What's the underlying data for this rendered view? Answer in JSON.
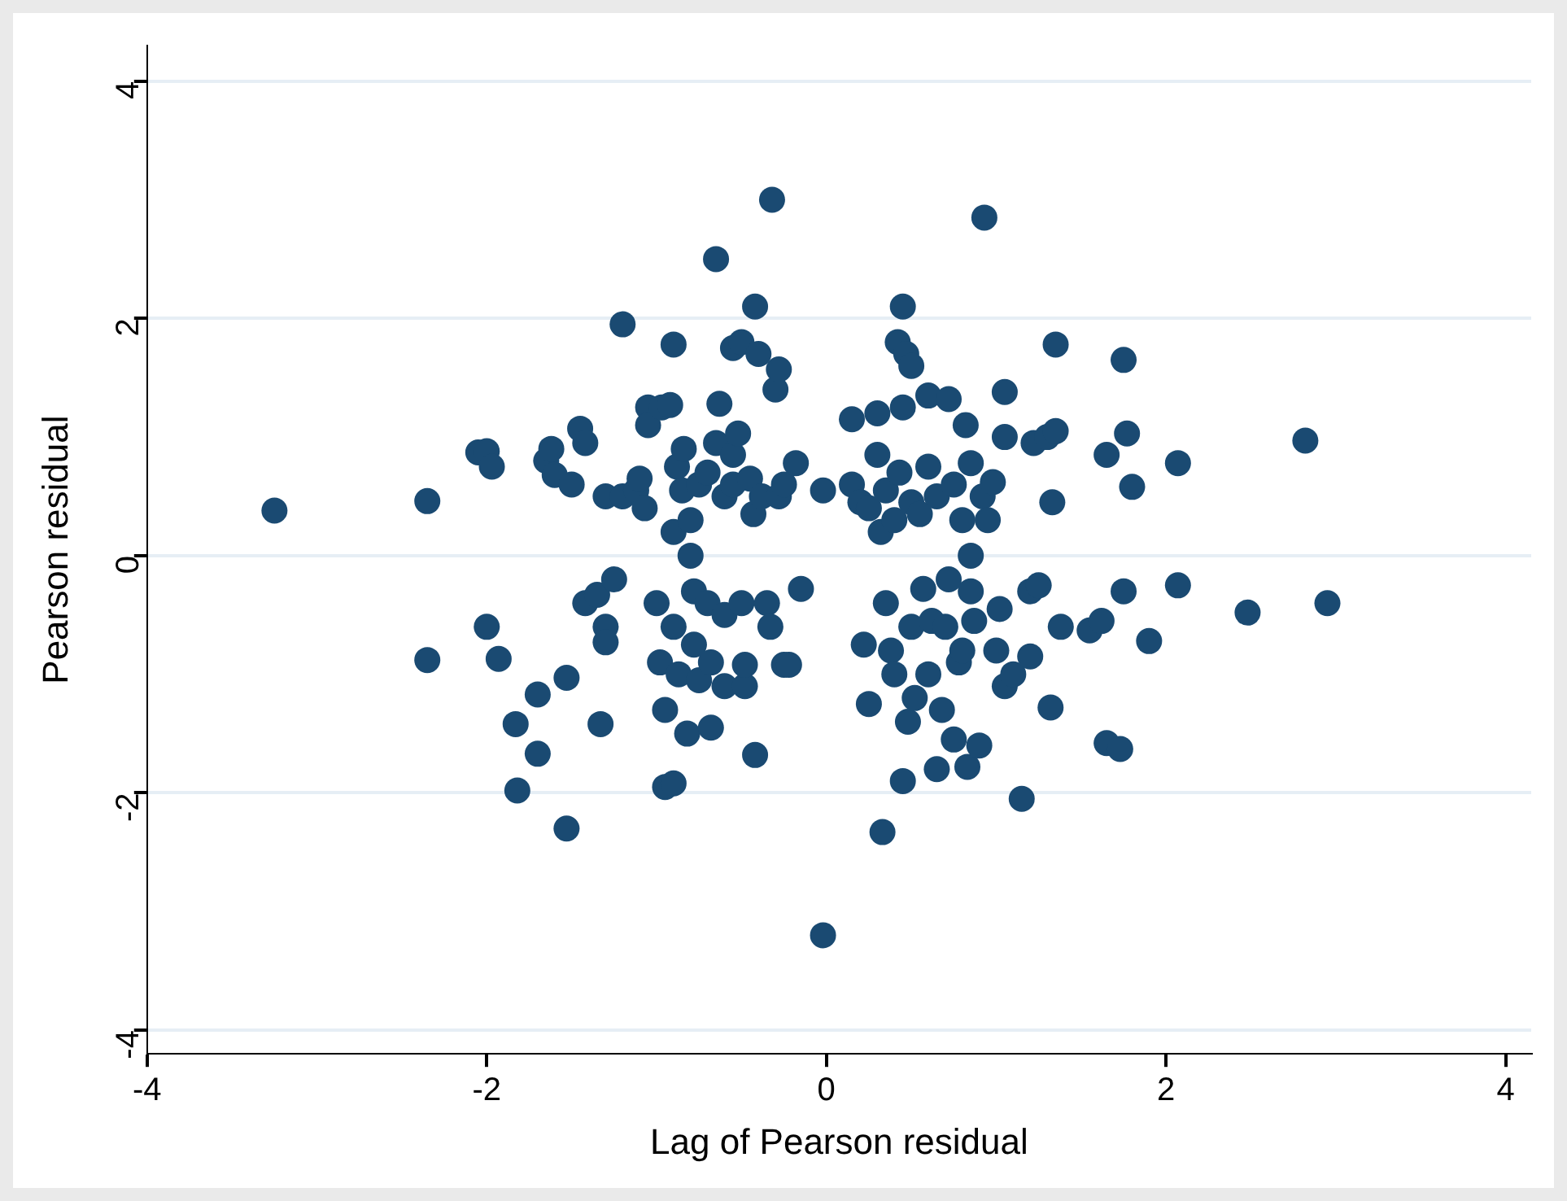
{
  "chart_data": {
    "type": "scatter",
    "xlabel": "Lag of Pearson residual",
    "ylabel": "Pearson residual",
    "xlim": [
      -4,
      4.15
    ],
    "ylim": [
      -4.2,
      4.3
    ],
    "xticks": [
      -4,
      -2,
      0,
      2,
      4
    ],
    "yticks": [
      -4,
      -2,
      0,
      2,
      4
    ],
    "grid": "y",
    "marker": "circle",
    "series": [
      {
        "color": "#1a4a72",
        "x": [
          -3.25,
          -2.35,
          -2.35,
          -2.05,
          -2.0,
          -1.97,
          -2.0,
          -1.93,
          -1.83,
          -1.82,
          -1.7,
          -1.7,
          -1.65,
          -1.62,
          -1.6,
          -1.53,
          -1.53,
          -1.5,
          -1.45,
          -1.42,
          -1.42,
          -1.35,
          -1.33,
          -1.3,
          -1.3,
          -1.3,
          -1.25,
          -1.2,
          -1.2,
          -1.12,
          -1.1,
          -1.07,
          -1.05,
          -1.05,
          -1.0,
          -0.98,
          -0.97,
          -0.95,
          -0.95,
          -0.92,
          -0.9,
          -0.9,
          -0.9,
          -0.9,
          -0.88,
          -0.87,
          -0.85,
          -0.84,
          -0.82,
          -0.8,
          -0.8,
          -0.78,
          -0.78,
          -0.75,
          -0.75,
          -0.7,
          -0.7,
          -0.68,
          -0.68,
          -0.65,
          -0.65,
          -0.63,
          -0.6,
          -0.6,
          -0.6,
          -0.55,
          -0.55,
          -0.55,
          -0.52,
          -0.5,
          -0.5,
          -0.48,
          -0.48,
          -0.45,
          -0.43,
          -0.42,
          -0.42,
          -0.4,
          -0.38,
          -0.35,
          -0.33,
          -0.32,
          -0.3,
          -0.28,
          -0.28,
          -0.25,
          -0.25,
          -0.22,
          -0.18,
          -0.15,
          -0.02,
          -0.02,
          0.15,
          0.15,
          0.2,
          0.22,
          0.25,
          0.25,
          0.3,
          0.3,
          0.32,
          0.33,
          0.35,
          0.35,
          0.38,
          0.4,
          0.4,
          0.42,
          0.43,
          0.45,
          0.45,
          0.45,
          0.47,
          0.48,
          0.5,
          0.5,
          0.5,
          0.52,
          0.55,
          0.57,
          0.6,
          0.6,
          0.6,
          0.62,
          0.65,
          0.65,
          0.68,
          0.7,
          0.72,
          0.72,
          0.75,
          0.75,
          0.78,
          0.8,
          0.8,
          0.82,
          0.83,
          0.85,
          0.85,
          0.85,
          0.87,
          0.9,
          0.92,
          0.93,
          0.95,
          0.98,
          1.0,
          1.02,
          1.05,
          1.05,
          1.05,
          1.1,
          1.15,
          1.2,
          1.2,
          1.22,
          1.25,
          1.3,
          1.32,
          1.33,
          1.35,
          1.35,
          1.38,
          1.55,
          1.62,
          1.65,
          1.65,
          1.73,
          1.75,
          1.75,
          1.77,
          1.8,
          1.9,
          2.07,
          2.07,
          2.48,
          2.82,
          2.95
        ],
        "values": [
          0.38,
          0.46,
          -0.88,
          0.87,
          0.88,
          0.75,
          -0.6,
          -0.87,
          -1.42,
          -1.98,
          -1.17,
          -1.67,
          0.8,
          0.9,
          0.68,
          -1.03,
          -2.3,
          0.6,
          1.07,
          0.95,
          -0.4,
          -0.33,
          -1.42,
          -0.6,
          -0.73,
          0.5,
          -0.2,
          1.95,
          0.5,
          0.55,
          0.65,
          0.4,
          1.25,
          1.1,
          -0.4,
          -0.9,
          1.25,
          -1.95,
          -1.3,
          1.27,
          1.78,
          0.2,
          -0.6,
          -1.92,
          0.75,
          -1.0,
          0.55,
          0.9,
          -1.5,
          0.0,
          0.3,
          -0.3,
          -0.75,
          0.6,
          -1.05,
          0.7,
          -0.4,
          -0.9,
          -1.45,
          2.5,
          0.95,
          1.28,
          0.5,
          -0.5,
          -1.1,
          1.75,
          0.85,
          0.6,
          1.03,
          1.8,
          -0.4,
          -1.1,
          -0.92,
          0.65,
          0.35,
          2.1,
          -1.68,
          1.7,
          0.5,
          -0.4,
          -0.6,
          3.0,
          1.4,
          1.57,
          0.5,
          0.6,
          -0.92,
          -0.92,
          0.78,
          -0.28,
          0.55,
          -3.2,
          1.15,
          0.6,
          0.45,
          -0.75,
          0.4,
          -1.25,
          1.2,
          0.85,
          0.2,
          -2.33,
          0.55,
          -0.4,
          -0.8,
          0.3,
          -1.0,
          1.8,
          0.7,
          2.1,
          -1.9,
          1.25,
          1.7,
          -1.4,
          0.45,
          -0.6,
          1.6,
          -1.2,
          0.35,
          -0.28,
          1.35,
          0.75,
          -1.0,
          -0.55,
          0.5,
          -1.8,
          -1.3,
          -0.6,
          1.32,
          -0.2,
          0.6,
          -1.55,
          -0.9,
          0.3,
          -0.8,
          1.1,
          -1.78,
          0.78,
          0.0,
          -0.3,
          -0.55,
          -1.6,
          0.5,
          2.85,
          0.3,
          0.62,
          -0.8,
          -0.45,
          1.38,
          1.0,
          -1.1,
          -1.0,
          -2.05,
          -0.85,
          -0.3,
          0.95,
          -0.25,
          1.0,
          -1.28,
          0.45,
          1.78,
          1.05,
          -0.6,
          -0.63,
          -0.55,
          0.85,
          -1.58,
          -1.63,
          1.65,
          -0.3,
          1.03,
          0.58,
          -0.72,
          0.78,
          -0.25,
          -0.48,
          0.97,
          -0.4
        ]
      }
    ]
  }
}
